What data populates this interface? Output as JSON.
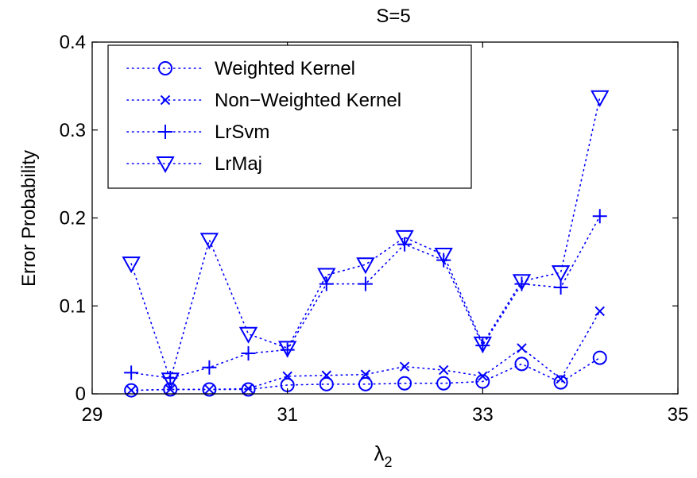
{
  "chart_data": {
    "type": "line",
    "title": "S=5",
    "xlabel": "λ",
    "xlabel_subscript": "2",
    "ylabel": "Error Probability",
    "xlim": [
      29,
      35
    ],
    "ylim": [
      0,
      0.4
    ],
    "x_ticks": [
      29,
      31,
      33,
      35
    ],
    "x_tick_labels": [
      "29",
      "31",
      "33",
      "35"
    ],
    "y_ticks": [
      0,
      0.1,
      0.2,
      0.3,
      0.4
    ],
    "y_tick_labels": [
      "0",
      "0.1",
      "0.2",
      "0.3",
      "0.4"
    ],
    "grid": false,
    "legend_position": "top-left",
    "line_style": "dotted",
    "color": "#0000ff",
    "x": [
      29.4,
      29.8,
      30.2,
      30.6,
      31.0,
      31.4,
      31.8,
      32.2,
      32.6,
      33.0,
      33.4,
      33.8,
      34.2
    ],
    "series": [
      {
        "name": "Weighted Kernel",
        "marker": "circle",
        "values": [
          0.004,
          0.005,
          0.005,
          0.005,
          0.01,
          0.011,
          0.011,
          0.012,
          0.012,
          0.014,
          0.034,
          0.013,
          0.041
        ]
      },
      {
        "name": "Non−Weighted Kernel",
        "marker": "x",
        "values": [
          0.004,
          0.005,
          0.005,
          0.006,
          0.02,
          0.021,
          0.022,
          0.031,
          0.027,
          0.02,
          0.052,
          0.017,
          0.094
        ]
      },
      {
        "name": "LrSvm",
        "marker": "plus",
        "values": [
          0.024,
          0.018,
          0.03,
          0.046,
          0.05,
          0.125,
          0.125,
          0.17,
          0.152,
          0.055,
          0.125,
          0.121,
          0.202
        ]
      },
      {
        "name": "LrMaj",
        "marker": "triangle-down",
        "values": [
          0.148,
          0.016,
          0.175,
          0.068,
          0.052,
          0.135,
          0.147,
          0.178,
          0.158,
          0.057,
          0.128,
          0.138,
          0.337
        ]
      }
    ]
  }
}
